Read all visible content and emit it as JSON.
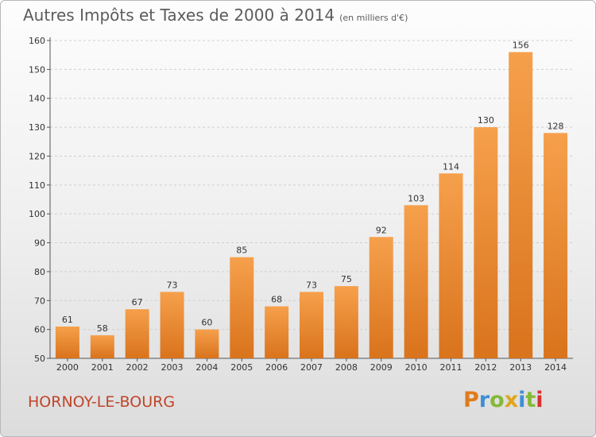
{
  "header": {
    "title": "Autres Impôts et Taxes de 2000 à 2014",
    "subtitle": "(en milliers d'€)"
  },
  "footer": {
    "place": "HORNOY-LE-BOURG",
    "logo": "Proxiti",
    "logo_colors": [
      "#e07b1a",
      "#3e8fd6",
      "#86b936",
      "#e0a51a",
      "#3e8fd6",
      "#86b936",
      "#d9302b"
    ]
  },
  "colors": {
    "bar_light": "#f6a04c",
    "bar_dark": "#d9731c",
    "grid": "#cfcfcf",
    "text": "#333333"
  },
  "chart_data": {
    "type": "bar",
    "title": "Autres Impôts et Taxes de 2000 à 2014",
    "subtitle": "(en milliers d'€)",
    "categories": [
      "2000",
      "2001",
      "2002",
      "2003",
      "2004",
      "2005",
      "2006",
      "2007",
      "2008",
      "2009",
      "2010",
      "2011",
      "2012",
      "2013",
      "2014"
    ],
    "values": [
      61,
      58,
      67,
      73,
      60,
      85,
      68,
      73,
      75,
      92,
      103,
      114,
      130,
      156,
      128
    ],
    "ylim": [
      50,
      160
    ],
    "yticks": [
      50,
      60,
      70,
      80,
      90,
      100,
      110,
      120,
      130,
      140,
      150,
      160
    ],
    "grid": true,
    "data_labels": true
  }
}
